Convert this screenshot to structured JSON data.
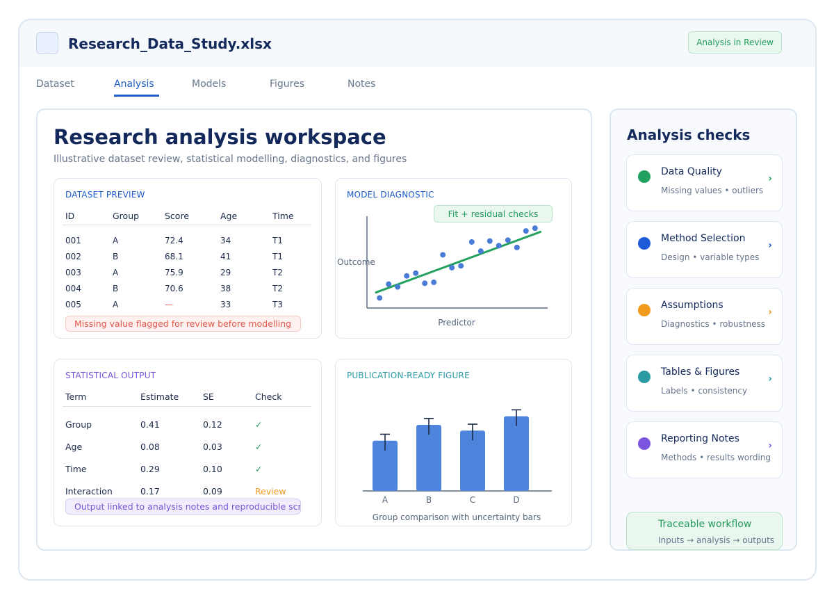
{
  "window": {
    "file_title": "Research_Data_Study.xlsx",
    "status": "Analysis in Review"
  },
  "tabs": [
    {
      "label": "Dataset",
      "active": false
    },
    {
      "label": "Analysis",
      "active": true
    },
    {
      "label": "Models",
      "active": false
    },
    {
      "label": "Figures",
      "active": false
    },
    {
      "label": "Notes",
      "active": false
    }
  ],
  "main": {
    "title": "Research analysis workspace",
    "subtitle": "Illustrative dataset review, statistical modelling, diagnostics, and figures"
  },
  "dataset_preview": {
    "label": "DATASET PREVIEW",
    "columns": [
      "ID",
      "Group",
      "Score",
      "Age",
      "Time"
    ],
    "rows": [
      [
        "001",
        "A",
        "72.4",
        "34",
        "T1"
      ],
      [
        "002",
        "B",
        "68.1",
        "41",
        "T1"
      ],
      [
        "003",
        "A",
        "75.9",
        "29",
        "T2"
      ],
      [
        "004",
        "B",
        "70.6",
        "38",
        "T2"
      ],
      [
        "005",
        "A",
        "—",
        "33",
        "T3"
      ]
    ],
    "note": "Missing value flagged for review before modelling"
  },
  "model_diagnostic": {
    "label": "MODEL DIAGNOSTIC",
    "badge": "Fit + residual checks",
    "ylabel": "Outcome",
    "xlabel": "Predictor"
  },
  "statistical_output": {
    "label": "STATISTICAL OUTPUT",
    "columns": [
      "Term",
      "Estimate",
      "SE",
      "Check"
    ],
    "rows": [
      [
        "Group",
        "0.41",
        "0.12",
        "✓"
      ],
      [
        "Age",
        "0.08",
        "0.03",
        "✓"
      ],
      [
        "Time",
        "0.29",
        "0.10",
        "✓"
      ],
      [
        "Interaction",
        "0.17",
        "0.09",
        "Review"
      ]
    ],
    "note": "Output linked to analysis notes and reproducible script"
  },
  "figure": {
    "label": "PUBLICATION-READY FIGURE",
    "caption": "Group comparison with uncertainty bars"
  },
  "checks": {
    "title": "Analysis checks",
    "items": [
      {
        "title": "Data Quality",
        "sub": "Missing values • outliers",
        "color": "#22a05d"
      },
      {
        "title": "Method Selection",
        "sub": "Design • variable types",
        "color": "#1d5bd8"
      },
      {
        "title": "Assumptions",
        "sub": "Diagnostics • robustness",
        "color": "#f29a1c"
      },
      {
        "title": "Tables & Figures",
        "sub": "Labels • consistency",
        "color": "#2b9ba3"
      },
      {
        "title": "Reporting Notes",
        "sub": "Methods • results wording",
        "color": "#7b55e0"
      }
    ],
    "chevron": "›",
    "workflow_title": "Traceable workflow",
    "workflow_sub": "Inputs → analysis → outputs"
  },
  "chart_data": [
    {
      "type": "scatter",
      "title": "",
      "xlabel": "Predictor",
      "ylabel": "Outcome",
      "xlim": [
        0,
        100
      ],
      "ylim": [
        0,
        100
      ],
      "points": [
        [
          7,
          11
        ],
        [
          12,
          26
        ],
        [
          17,
          23
        ],
        [
          22,
          35
        ],
        [
          27,
          38
        ],
        [
          32,
          27
        ],
        [
          37,
          28
        ],
        [
          42,
          58
        ],
        [
          47,
          44
        ],
        [
          52,
          46
        ],
        [
          58,
          72
        ],
        [
          63,
          62
        ],
        [
          68,
          73
        ],
        [
          73,
          68
        ],
        [
          78,
          74
        ],
        [
          83,
          66
        ],
        [
          88,
          84
        ],
        [
          93,
          87
        ]
      ],
      "fit_line": [
        [
          5,
          17
        ],
        [
          96,
          83
        ]
      ],
      "point_color": "#4a7bd6",
      "line_color": "#22a05d"
    },
    {
      "type": "bar",
      "title": "Group comparison with uncertainty bars",
      "categories": [
        "A",
        "B",
        "C",
        "D"
      ],
      "values": [
        70,
        92,
        84,
        104
      ],
      "errors": [
        9,
        9,
        9,
        9
      ],
      "ylim": [
        0,
        125
      ],
      "bar_color": "#4f84dc"
    }
  ]
}
